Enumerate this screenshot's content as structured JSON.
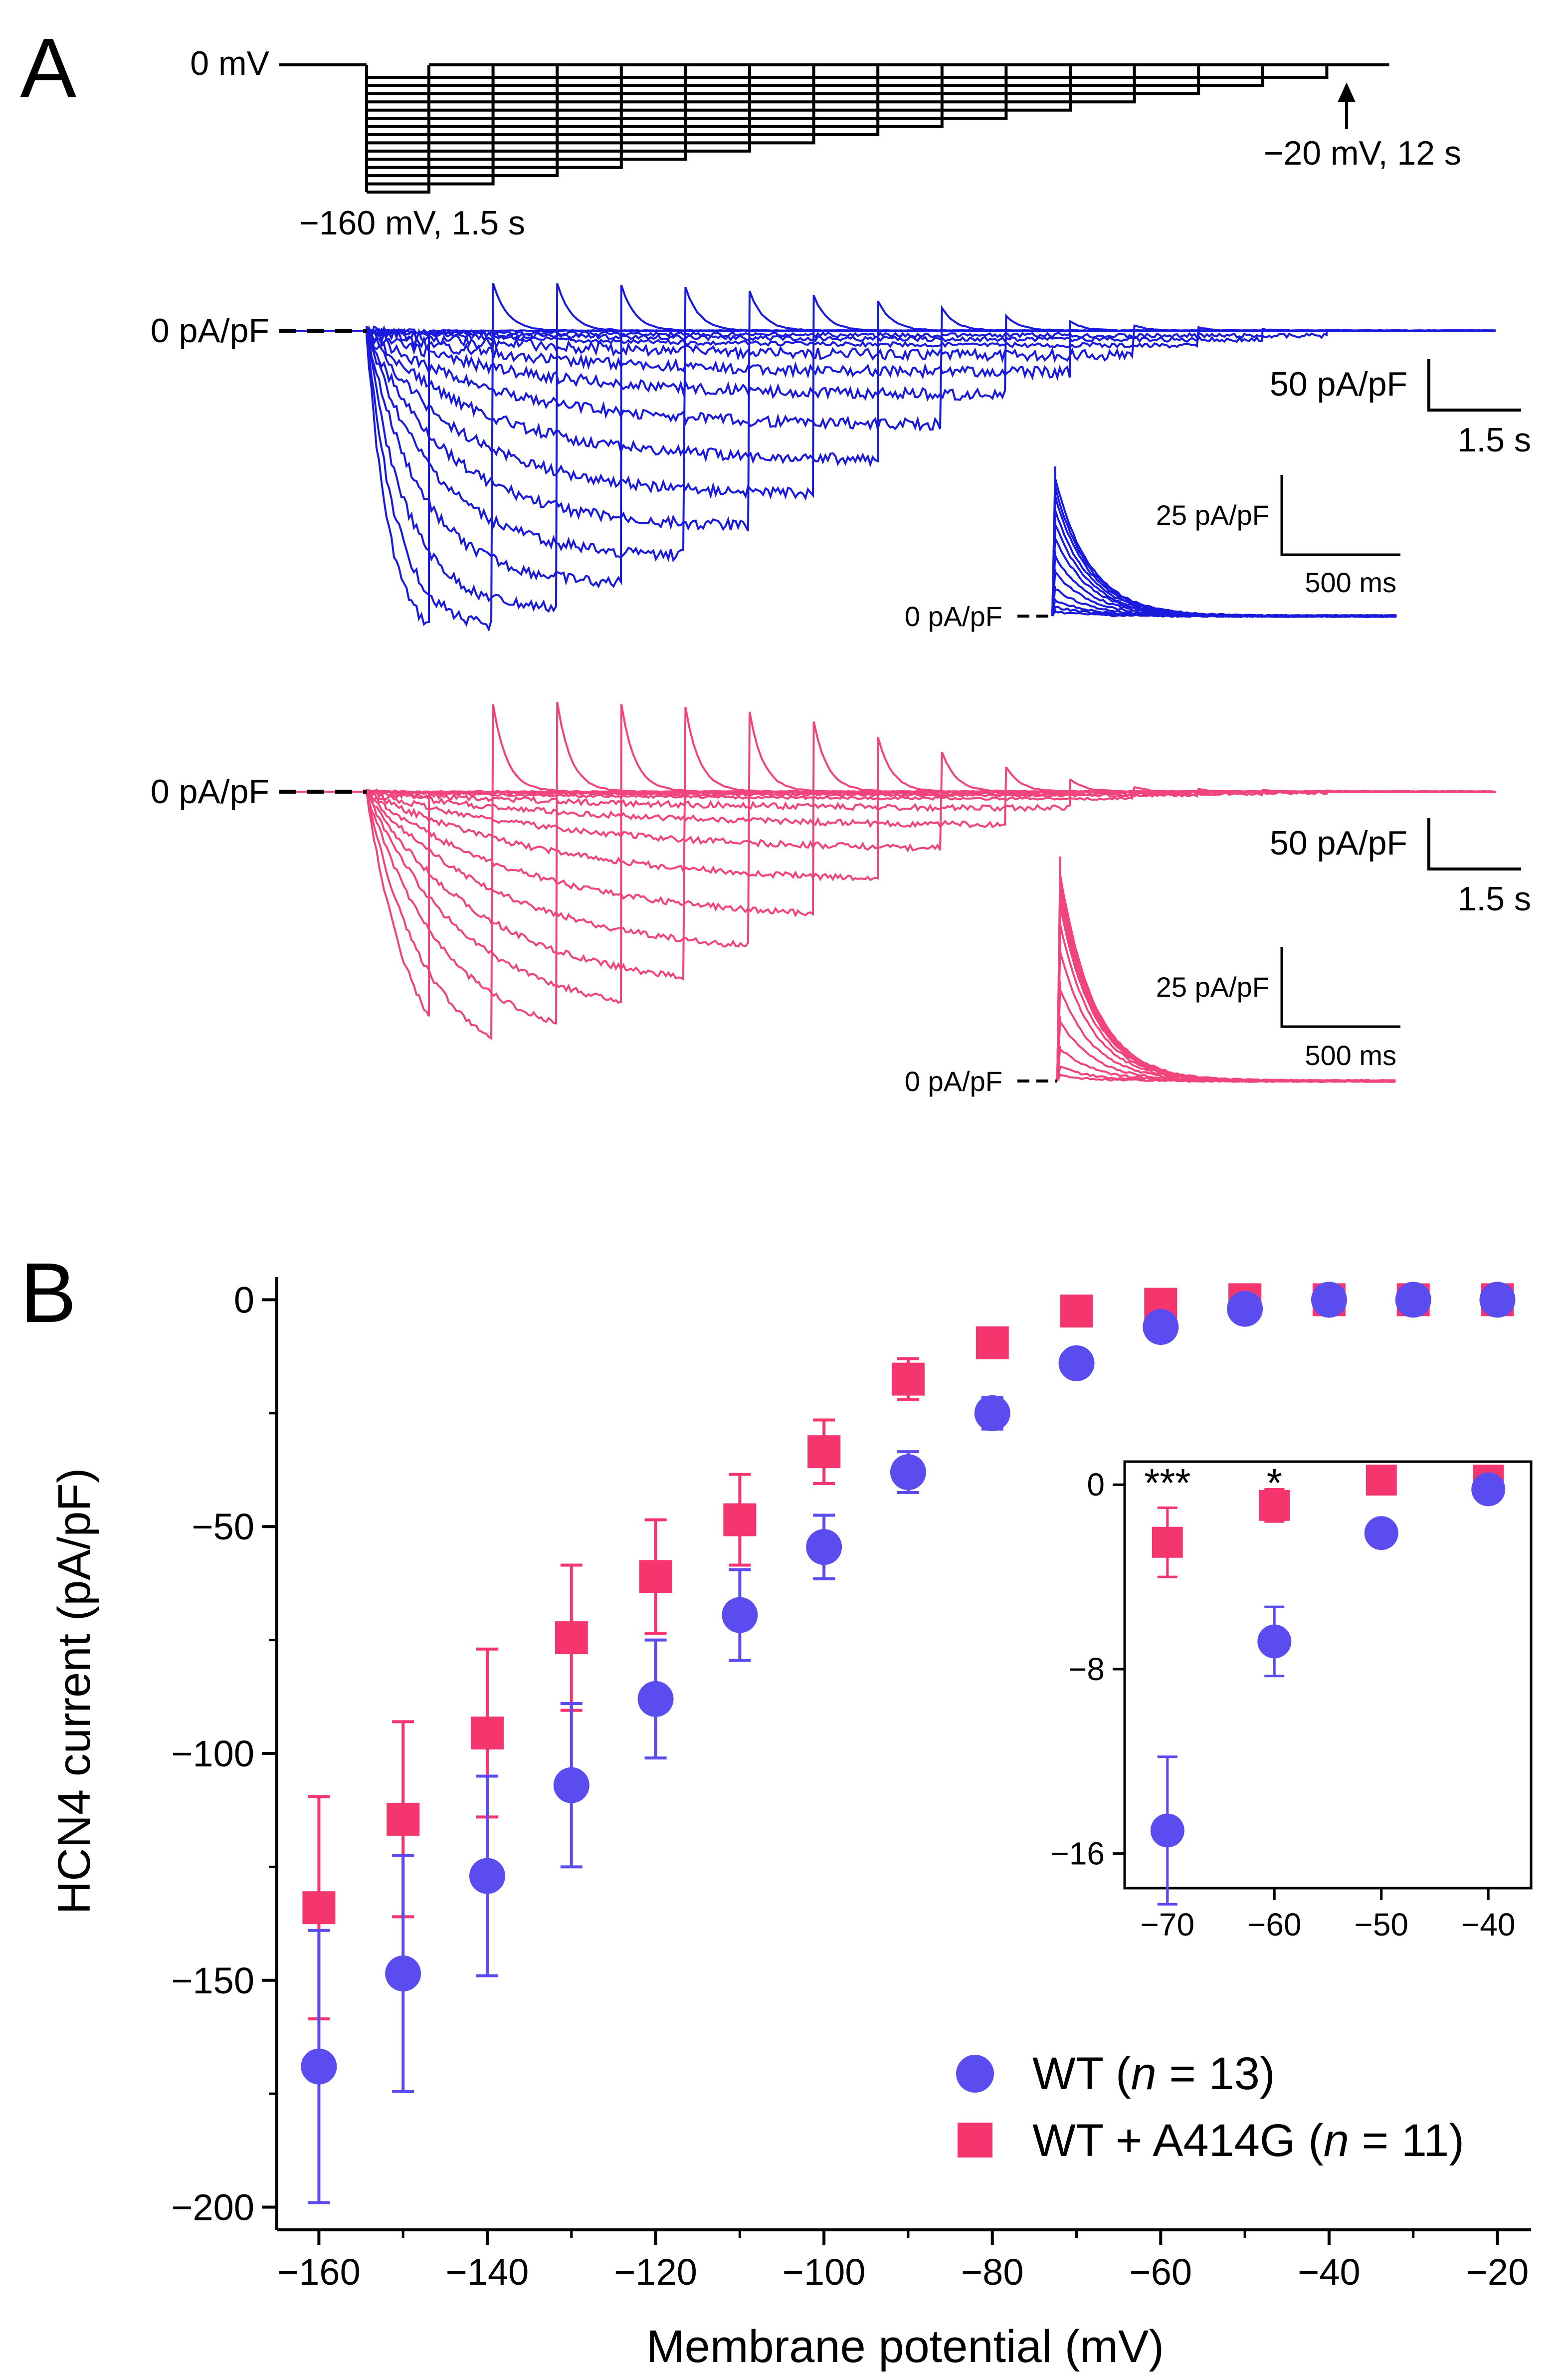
{
  "panels": {
    "a_letter": "A",
    "b_letter": "B"
  },
  "protocol": {
    "holding_label": "0 mV",
    "step_label": "−160 mV, 1.5 s",
    "end_label": "−20 mV, 12 s"
  },
  "traces": {
    "zero_label": "0 pA/pF",
    "scale_current": "50 pA/pF",
    "scale_time": "1.5 s",
    "inset_zero_label": "0 pA/pF",
    "inset_scale_current": "25 pA/pF",
    "inset_scale_time": "500 ms",
    "wt_color": "#1a1adc",
    "mut_color": "#f0457a"
  },
  "chart_data": {
    "type": "scatter",
    "xlabel": "Membrane potential (mV)",
    "ylabel": "HCN4 current (pA/pF)",
    "xlim": [
      -165,
      -16
    ],
    "ylim": [
      -205,
      5
    ],
    "xticks": [
      -160,
      -140,
      -120,
      -100,
      -80,
      -60,
      -40,
      -20
    ],
    "yticks": [
      0,
      -50,
      -100,
      -150,
      -200
    ],
    "x": [
      -160,
      -150,
      -140,
      -130,
      -120,
      -110,
      -100,
      -90,
      -80,
      -70,
      -60,
      -50,
      -40,
      -30,
      -20
    ],
    "series": [
      {
        "name": "WT",
        "legend_name": "WT",
        "legend_n": "13",
        "marker": "circle",
        "color": "#5b4cf0",
        "values": [
          -169,
          -148.5,
          -127,
          -107,
          -88,
          -69.5,
          -54.5,
          -38,
          -25,
          -14,
          -6,
          -2,
          0,
          0,
          0
        ],
        "errors": [
          30,
          26,
          22,
          18,
          13,
          10,
          7,
          4.5,
          3.5,
          2,
          1.2,
          0.8,
          0.5,
          0.5,
          0.5
        ]
      },
      {
        "name": "WT + A414G",
        "legend_name": "WT + A414G",
        "legend_n": "11",
        "marker": "square",
        "color": "#f5356e",
        "values": [
          -134,
          -114.5,
          -95.5,
          -74.5,
          -61,
          -48.5,
          -33.5,
          -17.5,
          -9.5,
          -2.5,
          -1,
          0,
          0,
          0,
          0
        ],
        "errors": [
          24.5,
          21.5,
          18.5,
          16,
          12.5,
          10,
          7,
          4.5,
          2.5,
          1.5,
          0.8,
          0.5,
          0.5,
          0.5,
          0.5
        ]
      }
    ],
    "legend_n_symbol": "n",
    "inset": {
      "type": "scatter",
      "xlim": [
        -74,
        -36
      ],
      "ylim": [
        -17.5,
        1
      ],
      "xticks": [
        -70,
        -60,
        -50,
        -40
      ],
      "yticks": [
        0,
        -8,
        -16
      ],
      "x": [
        -70,
        -60,
        -50,
        -40
      ],
      "series": [
        {
          "name": "WT",
          "values": [
            -15,
            -6.8,
            -2.1,
            -0.2
          ],
          "errors": [
            3.2,
            1.5,
            0.5,
            0.4
          ]
        },
        {
          "name": "WT + A414G",
          "values": [
            -2.5,
            -0.9,
            0.2,
            0.2
          ],
          "errors": [
            1.5,
            0.7,
            0.3,
            0.3
          ]
        }
      ],
      "annotations": [
        {
          "x": -70,
          "text": "***"
        },
        {
          "x": -60,
          "text": "*"
        }
      ]
    }
  }
}
